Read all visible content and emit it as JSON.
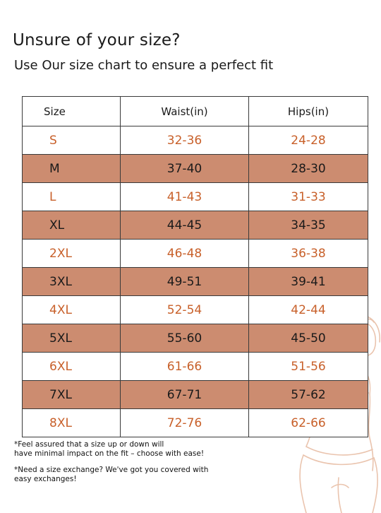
{
  "header": {
    "title": "Unsure of your size?",
    "subtitle": "Use Our size chart to ensure a perfect fit"
  },
  "table": {
    "columns": [
      "Size",
      "Waist(in)",
      "Hips(in)"
    ],
    "rows": [
      {
        "size": "S",
        "waist": "32-36",
        "hips": "24-28",
        "shaded": false
      },
      {
        "size": "M",
        "waist": "37-40",
        "hips": "28-30",
        "shaded": true
      },
      {
        "size": "L",
        "waist": "41-43",
        "hips": "31-33",
        "shaded": false
      },
      {
        "size": "XL",
        "waist": "44-45",
        "hips": "34-35",
        "shaded": true
      },
      {
        "size": "2XL",
        "waist": "46-48",
        "hips": "36-38",
        "shaded": false
      },
      {
        "size": "3XL",
        "waist": "49-51",
        "hips": "39-41",
        "shaded": true
      },
      {
        "size": "4XL",
        "waist": "52-54",
        "hips": "42-44",
        "shaded": false
      },
      {
        "size": "5XL",
        "waist": "55-60",
        "hips": "45-50",
        "shaded": true
      },
      {
        "size": "6XL",
        "waist": "61-66",
        "hips": "51-56",
        "shaded": false
      },
      {
        "size": "7XL",
        "waist": "67-71",
        "hips": "57-62",
        "shaded": true
      },
      {
        "size": "8XL",
        "waist": "72-76",
        "hips": "62-66",
        "shaded": false
      }
    ]
  },
  "notes": [
    "*Feel assured that a size up or down will\nhave minimal impact on the fit – choose with ease!",
    "*Need a size exchange? We've got you covered with\n easy exchanges!"
  ],
  "colors": {
    "accent_text": "#c8602a",
    "shaded_row": "#cc8c70",
    "outline": "#eac4ae"
  },
  "decor": {
    "illustration": "woman-body-outline-illustration"
  }
}
